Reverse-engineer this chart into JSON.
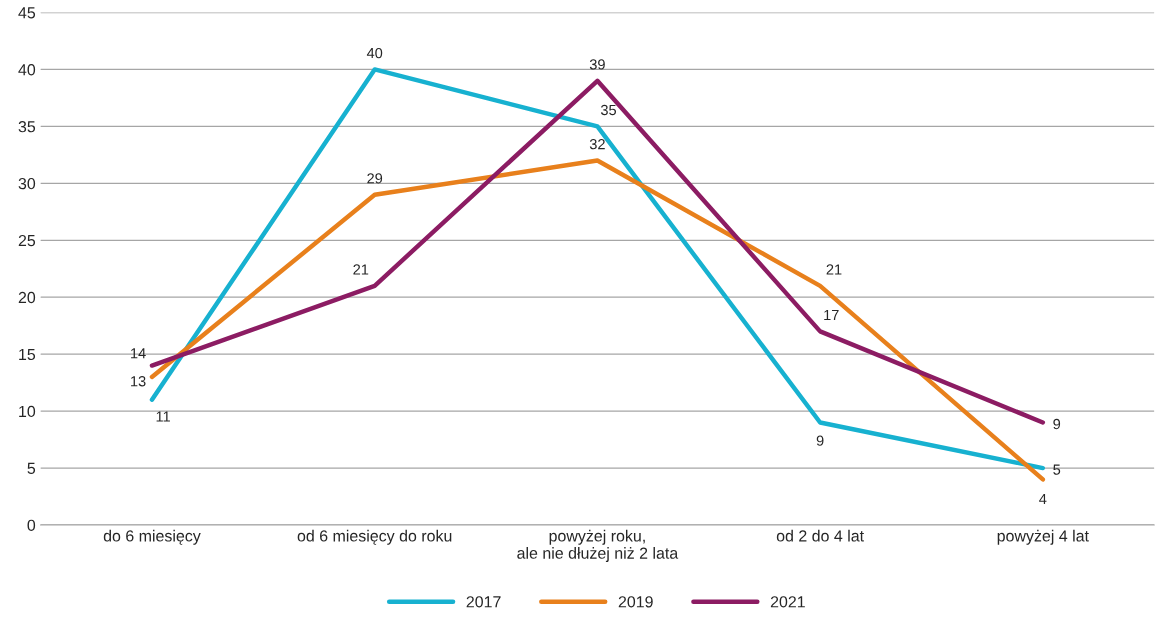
{
  "chart_data": {
    "type": "line",
    "categories": [
      "do 6 miesięcy",
      "od 6 miesięcy do roku",
      "powyżej roku,\nale nie dłużej niż 2 lata",
      "od 2 do 4 lat",
      "powyżej 4 lat"
    ],
    "series": [
      {
        "name": "2017",
        "color": "#17b1d0",
        "values": [
          11,
          40,
          35,
          9,
          5
        ]
      },
      {
        "name": "2019",
        "color": "#e8801c",
        "values": [
          13,
          29,
          32,
          21,
          4
        ]
      },
      {
        "name": "2021",
        "color": "#8c1c63",
        "values": [
          14,
          21,
          39,
          17,
          9
        ]
      }
    ],
    "ylim": [
      0,
      45
    ],
    "yticks": [
      0,
      5,
      10,
      15,
      20,
      25,
      30,
      35,
      40,
      45
    ],
    "grid": "y",
    "legend": "bottom",
    "data_labels": true,
    "marker": "none",
    "line_style": "solid"
  }
}
